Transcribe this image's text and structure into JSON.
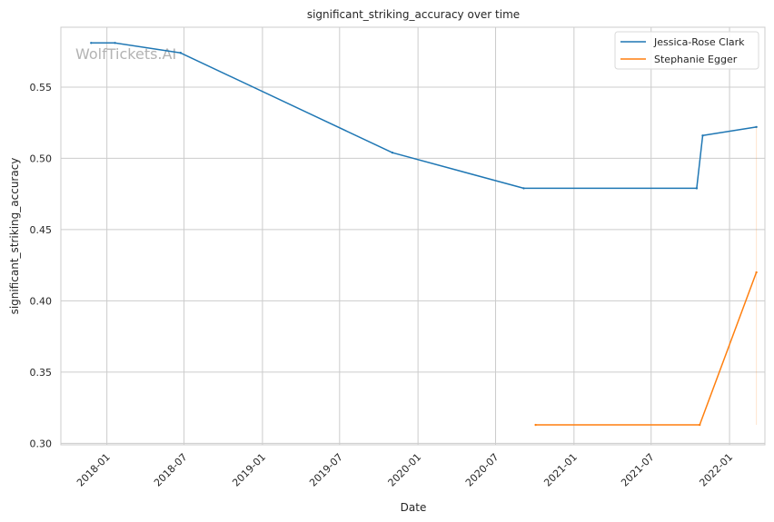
{
  "chart_data": {
    "type": "line",
    "title": "significant_striking_accuracy over time",
    "xlabel": "Date",
    "ylabel": "significant_striking_accuracy",
    "watermark": "WolfTickets.AI",
    "x_range": [
      "2017-09-15",
      "2022-03-25"
    ],
    "ylim": [
      0.299,
      0.592
    ],
    "grid": true,
    "legend_position": "top-right",
    "x_ticks": [
      "2018-01",
      "2018-07",
      "2019-01",
      "2019-07",
      "2020-01",
      "2020-07",
      "2021-01",
      "2021-07",
      "2022-01"
    ],
    "y_ticks": [
      "0.30",
      "0.35",
      "0.40",
      "0.45",
      "0.50",
      "0.55"
    ],
    "series": [
      {
        "name": "Jessica-Rose Clark",
        "color": "#1f77b4",
        "points": [
          {
            "x": "2017-11-25",
            "y": 0.581
          },
          {
            "x": "2018-01-20",
            "y": 0.581
          },
          {
            "x": "2018-06-23",
            "y": 0.574
          },
          {
            "x": "2019-11-02",
            "y": 0.504
          },
          {
            "x": "2020-09-05",
            "y": 0.479
          },
          {
            "x": "2021-10-16",
            "y": 0.479
          },
          {
            "x": "2021-10-30",
            "y": 0.516
          },
          {
            "x": "2022-03-05",
            "y": 0.522
          }
        ]
      },
      {
        "name": "Stephanie Egger",
        "color": "#ff7f0e",
        "points": [
          {
            "x": "2020-10-03",
            "y": 0.313
          },
          {
            "x": "2021-10-23",
            "y": 0.313
          },
          {
            "x": "2022-03-05",
            "y": 0.42
          }
        ]
      }
    ]
  }
}
